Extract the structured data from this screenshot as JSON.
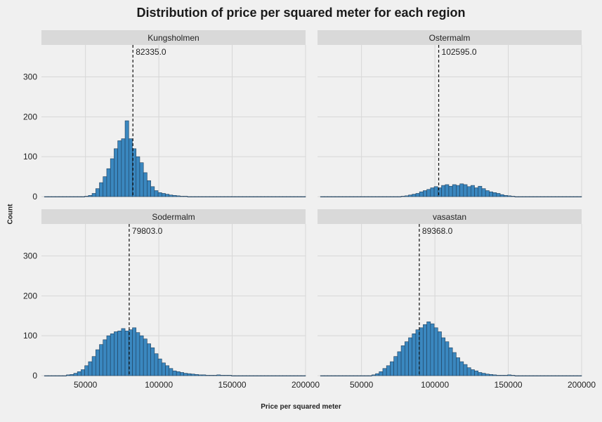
{
  "title": "Distribution of price per squared meter for each region",
  "xlabel": "Price per squared meter",
  "ylabel": "Count",
  "colors": {
    "bar": "#3a87bf",
    "bar_edge": "#1f3f5c",
    "strip": "#d9d9d9",
    "grid": "#d7d7d7",
    "background": "#f0f0f0"
  },
  "chart_data": {
    "type": "bar",
    "subtype": "faceted histogram",
    "title": "Distribution of price per squared meter for each region",
    "xlabel": "Price per squared meter",
    "ylabel": "Count",
    "xlim": [
      20000,
      200000
    ],
    "ylim": [
      0,
      380
    ],
    "xticks": [
      50000,
      100000,
      150000,
      200000
    ],
    "xtick_labels": [
      "50000",
      "100000",
      "150000",
      "200000"
    ],
    "yticks": [
      0,
      100,
      200,
      300
    ],
    "ytick_labels": [
      "0",
      "100",
      "200",
      "300"
    ],
    "grid": true,
    "bin_start": 22000,
    "bin_width": 2500,
    "panels": [
      {
        "name": "Kungsholmen",
        "median": 82335.0,
        "median_label": "82335.0",
        "counts": [
          0,
          0,
          0,
          0,
          0,
          0,
          0,
          0,
          0,
          0,
          0,
          1,
          3,
          8,
          20,
          35,
          50,
          70,
          95,
          120,
          140,
          145,
          190,
          145,
          120,
          100,
          85,
          60,
          40,
          25,
          15,
          10,
          8,
          6,
          4,
          3,
          2,
          1,
          1,
          0,
          0,
          0,
          0,
          0,
          0,
          0,
          0,
          0,
          0,
          0,
          0,
          0,
          0,
          0,
          0,
          0,
          0,
          0,
          0,
          0,
          0,
          0,
          0,
          0,
          0,
          0,
          0,
          0,
          0,
          0,
          0,
          0
        ]
      },
      {
        "name": "Ostermalm",
        "median": 102595.0,
        "median_label": "102595.0",
        "counts": [
          0,
          0,
          0,
          0,
          0,
          0,
          0,
          0,
          0,
          0,
          0,
          0,
          0,
          0,
          0,
          0,
          0,
          0,
          0,
          0,
          0,
          0,
          1,
          2,
          4,
          6,
          8,
          12,
          15,
          18,
          22,
          25,
          22,
          28,
          30,
          26,
          30,
          28,
          32,
          30,
          25,
          28,
          22,
          26,
          20,
          15,
          12,
          10,
          8,
          5,
          3,
          2,
          1,
          0,
          0,
          0,
          0,
          0,
          0,
          0,
          0,
          0,
          0,
          0,
          0,
          0,
          0,
          0,
          0,
          0,
          0,
          0
        ]
      },
      {
        "name": "Sodermalm",
        "median": 79803.0,
        "median_label": "79803.0",
        "counts": [
          0,
          0,
          0,
          0,
          0,
          0,
          2,
          3,
          6,
          10,
          15,
          25,
          35,
          48,
          65,
          78,
          90,
          100,
          105,
          110,
          112,
          118,
          112,
          115,
          120,
          108,
          100,
          92,
          80,
          70,
          55,
          42,
          32,
          25,
          18,
          12,
          10,
          8,
          6,
          5,
          4,
          3,
          2,
          2,
          1,
          1,
          1,
          2,
          1,
          1,
          1,
          0,
          0,
          0,
          0,
          0,
          0,
          0,
          0,
          0,
          0,
          0,
          0,
          0,
          0,
          0,
          0,
          0,
          0,
          0,
          0,
          0
        ]
      },
      {
        "name": "vasastan",
        "median": 89368.0,
        "median_label": "89368.0",
        "counts": [
          0,
          0,
          0,
          0,
          0,
          0,
          0,
          0,
          0,
          0,
          0,
          0,
          0,
          0,
          2,
          5,
          10,
          18,
          25,
          35,
          48,
          60,
          75,
          85,
          95,
          105,
          115,
          120,
          128,
          135,
          130,
          120,
          110,
          95,
          85,
          70,
          58,
          45,
          35,
          28,
          20,
          15,
          12,
          8,
          6,
          4,
          3,
          2,
          1,
          1,
          1,
          2,
          1,
          0,
          0,
          0,
          0,
          0,
          0,
          0,
          0,
          0,
          0,
          0,
          0,
          0,
          0,
          0,
          0,
          0,
          0,
          0
        ]
      }
    ]
  }
}
